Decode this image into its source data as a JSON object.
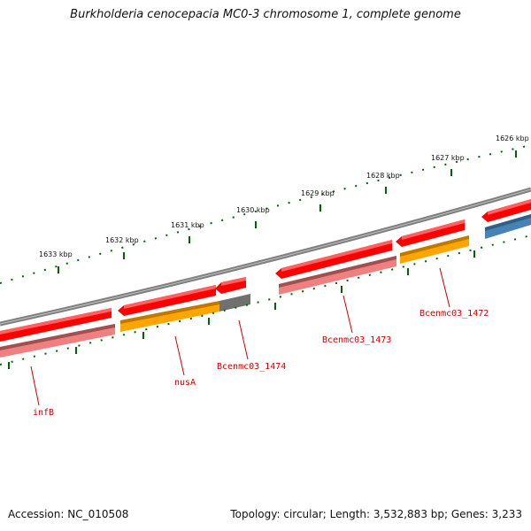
{
  "title": "Burkholderia cenocepacia MC0-3 chromosome 1, complete genome",
  "footer": {
    "accession": "Accession: NC_010508",
    "summary": "Topology: circular; Length: 3,532,883 bp; Genes: 3,233"
  },
  "ticks": [
    "1633 kbp",
    "1632 kbp",
    "1631 kbp",
    "1630 kbp",
    "1629 kbp",
    "1628 kbp",
    "1627 kbp",
    "1626 kbp"
  ],
  "gene_labels": [
    "infB",
    "nusA",
    "Bcenmc03_1474",
    "Bcenmc03_1473",
    "Bcenmc03_1472"
  ],
  "colors": {
    "backbone": "#808080",
    "cds": "#ff0000",
    "gene_pink": "#f08080",
    "orange": "#ffa500",
    "blue": "#4682b4",
    "grey_feature": "#707070",
    "ticks": "#006400",
    "label": "#cc0000"
  }
}
